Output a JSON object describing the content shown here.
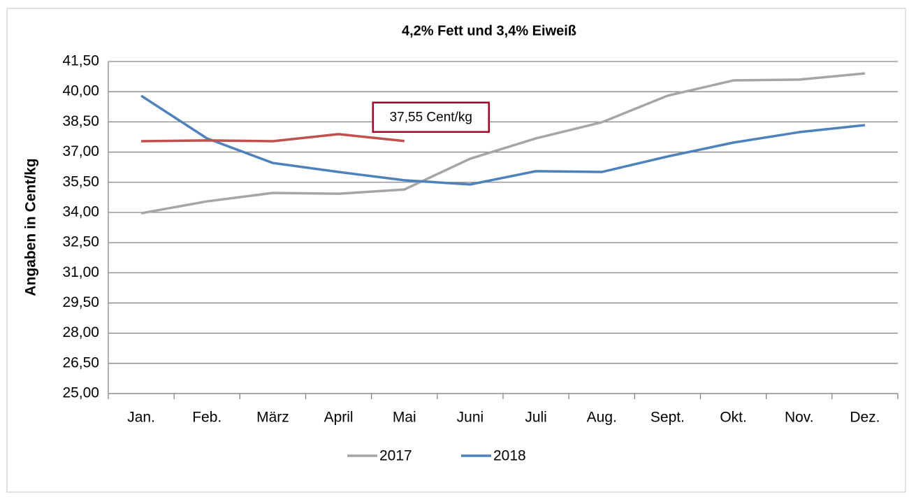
{
  "chart_data": {
    "type": "line",
    "title": "4,2% Fett und 3,4% Eiweiß",
    "y_label": "Angaben in Cent/kg",
    "categories": [
      "Jan.",
      "Feb.",
      "März",
      "April",
      "Mai",
      "Juni",
      "Juli",
      "Aug.",
      "Sept.",
      "Okt.",
      "Nov.",
      "Dez."
    ],
    "series": [
      {
        "name": "2017",
        "color": "#a5a5a5",
        "values": [
          33.96,
          34.55,
          34.97,
          34.93,
          35.14,
          36.67,
          37.68,
          38.48,
          39.8,
          40.56,
          40.6,
          40.91
        ]
      },
      {
        "name": "2018",
        "color": "#4f81bd",
        "values": [
          39.8,
          37.68,
          36.46,
          36.01,
          35.6,
          35.39,
          36.05,
          36.01,
          36.78,
          37.47,
          37.99,
          38.34
        ]
      },
      {
        "color": "#c0504d",
        "values": [
          37.54,
          37.58,
          37.54,
          37.89,
          37.55,
          null,
          null,
          null,
          null,
          null,
          null,
          null
        ],
        "value_labels": [
          null,
          null,
          null,
          null,
          "37,55 Cent/kg",
          null,
          null,
          null,
          null,
          null,
          null,
          null
        ]
      }
    ],
    "ylim": [
      25,
      41.5
    ],
    "yticks": [
      {
        "value": 25,
        "label": "25,00"
      },
      {
        "value": 26.5,
        "label": "26,50"
      },
      {
        "value": 28,
        "label": "28,00"
      },
      {
        "value": 29.5,
        "label": "29,50"
      },
      {
        "value": 31,
        "label": "31,00"
      },
      {
        "value": 32.5,
        "label": "32,50"
      },
      {
        "value": 34,
        "label": "34,00"
      },
      {
        "value": 35.5,
        "label": "35,50"
      },
      {
        "value": 37,
        "label": "37,00"
      },
      {
        "value": 38.5,
        "label": "38,50"
      },
      {
        "value": 40,
        "label": "40,00"
      },
      {
        "value": 41.5,
        "label": "41,50"
      }
    ],
    "grid": true,
    "legend": "bottom"
  }
}
